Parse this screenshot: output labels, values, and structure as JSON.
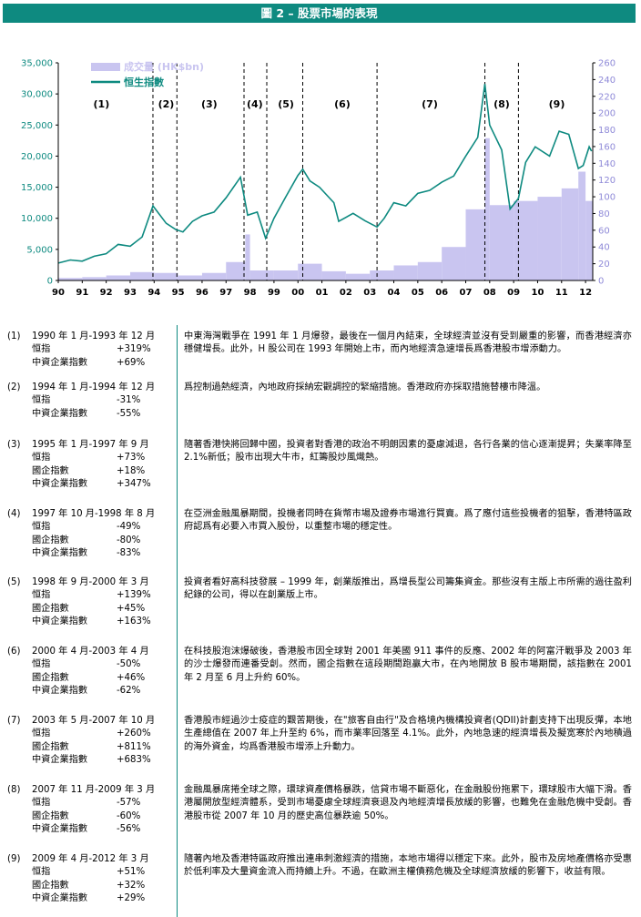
{
  "header": {
    "title": "圖 2 – 股票市場的表現"
  },
  "chart_data": {
    "type": "line+bar",
    "x_tick_labels": [
      "90",
      "91",
      "92",
      "93",
      "94",
      "95",
      "96",
      "97",
      "98",
      "99",
      "00",
      "01",
      "02",
      "03",
      "04",
      "05",
      "06",
      "07",
      "08",
      "09",
      "10",
      "11",
      "12"
    ],
    "x_range": [
      1990,
      2012.3
    ],
    "y_left": {
      "ylim": [
        0,
        35000
      ],
      "ticks": [
        "0",
        "5,000",
        "10,000",
        "15,000",
        "20,000",
        "25,000",
        "30,000",
        "35,000"
      ]
    },
    "y_right": {
      "ylim": [
        0,
        260
      ],
      "ticks": [
        "0",
        "20",
        "40",
        "60",
        "80",
        "100",
        "120",
        "140",
        "160",
        "180",
        "200",
        "220",
        "240",
        "260"
      ]
    },
    "series": [
      {
        "name": "成交量 (HK$bn)",
        "axis": "right",
        "kind": "bar",
        "color": "#c9c5f0",
        "points": [
          [
            1990,
            3
          ],
          [
            1991,
            4
          ],
          [
            1992,
            6
          ],
          [
            1993,
            10
          ],
          [
            1994,
            9
          ],
          [
            1995,
            6
          ],
          [
            1996,
            9
          ],
          [
            1997,
            22
          ],
          [
            1997.8,
            55
          ],
          [
            1998,
            12
          ],
          [
            1999,
            12
          ],
          [
            2000,
            20
          ],
          [
            2001,
            11
          ],
          [
            2002,
            8
          ],
          [
            2003,
            12
          ],
          [
            2004,
            18
          ],
          [
            2005,
            22
          ],
          [
            2006,
            40
          ],
          [
            2007,
            85
          ],
          [
            2007.8,
            170
          ],
          [
            2008,
            90
          ],
          [
            2009,
            95
          ],
          [
            2010,
            100
          ],
          [
            2011,
            110
          ],
          [
            2011.7,
            130
          ],
          [
            2012,
            95
          ]
        ]
      },
      {
        "name": "恒生指數",
        "axis": "left",
        "kind": "line",
        "color": "#0e8a80",
        "points": [
          [
            1990,
            2800
          ],
          [
            1990.5,
            3300
          ],
          [
            1991,
            3100
          ],
          [
            1991.5,
            3900
          ],
          [
            1992,
            4300
          ],
          [
            1992.5,
            5800
          ],
          [
            1993,
            5500
          ],
          [
            1993.5,
            7000
          ],
          [
            1993.95,
            12000
          ],
          [
            1994.5,
            9200
          ],
          [
            1994.9,
            8200
          ],
          [
            1995.2,
            7800
          ],
          [
            1995.6,
            9500
          ],
          [
            1996,
            10400
          ],
          [
            1996.5,
            11000
          ],
          [
            1997,
            13300
          ],
          [
            1997.6,
            16600
          ],
          [
            1997.9,
            10500
          ],
          [
            1998.3,
            11000
          ],
          [
            1998.65,
            6800
          ],
          [
            1999,
            10000
          ],
          [
            1999.5,
            13500
          ],
          [
            2000,
            16900
          ],
          [
            2000.2,
            17900
          ],
          [
            2000.5,
            16000
          ],
          [
            2000.9,
            15000
          ],
          [
            2001.5,
            12500
          ],
          [
            2001.7,
            9500
          ],
          [
            2002.3,
            10800
          ],
          [
            2002.8,
            9600
          ],
          [
            2003.3,
            8600
          ],
          [
            2003.6,
            10000
          ],
          [
            2004,
            12500
          ],
          [
            2004.5,
            12000
          ],
          [
            2005,
            14000
          ],
          [
            2005.5,
            14500
          ],
          [
            2006,
            15800
          ],
          [
            2006.5,
            16800
          ],
          [
            2007,
            20000
          ],
          [
            2007.5,
            23000
          ],
          [
            2007.8,
            31600
          ],
          [
            2008,
            25000
          ],
          [
            2008.5,
            21000
          ],
          [
            2008.85,
            11500
          ],
          [
            2009.2,
            13200
          ],
          [
            2009.5,
            19000
          ],
          [
            2009.9,
            21500
          ],
          [
            2010.5,
            20000
          ],
          [
            2010.9,
            24000
          ],
          [
            2011.3,
            23500
          ],
          [
            2011.7,
            18000
          ],
          [
            2011.9,
            18500
          ],
          [
            2012.15,
            21500
          ],
          [
            2012.25,
            20800
          ]
        ]
      }
    ],
    "period_dividers": [
      1993.95,
      1994.95,
      1997.75,
      1998.7,
      2000.2,
      2003.3,
      2007.8,
      2009.2
    ],
    "period_labels": [
      {
        "label": "(1)",
        "x": 1991.8
      },
      {
        "label": "(2)",
        "x": 1994.5
      },
      {
        "label": "(3)",
        "x": 1996.3
      },
      {
        "label": "(4)",
        "x": 1998.2
      },
      {
        "label": "(5)",
        "x": 1999.5
      },
      {
        "label": "(6)",
        "x": 2001.85
      },
      {
        "label": "(7)",
        "x": 2005.5
      },
      {
        "label": "(8)",
        "x": 2008.5
      },
      {
        "label": "(9)",
        "x": 2010.8
      }
    ],
    "legend": "top-left"
  },
  "periods": [
    {
      "num": "(1)",
      "range": "1990 年 1 月-1993 年 12 月",
      "rows": [
        [
          "恒指",
          "+319%"
        ],
        [
          "中資企業指數",
          "+69%"
        ]
      ],
      "desc": "中東海灣戰爭在 1991 年 1 月爆發，最後在一個月內結束，全球經濟並沒有受到嚴重的影響，而香港經濟亦穩健增長。此外，H 股公司在 1993 年開始上市，而內地經濟急速增長爲香港股市增添動力。"
    },
    {
      "num": "(2)",
      "range": "1994 年 1 月-1994 年 12 月",
      "rows": [
        [
          "恒指",
          "-31%"
        ],
        [
          "中資企業指數",
          "-55%"
        ]
      ],
      "desc": "爲控制過熱經濟，內地政府採納宏觀調控的緊縮措施。香港政府亦採取措施替樓市降溫。"
    },
    {
      "num": "(3)",
      "range": "1995 年 1 月-1997 年 9 月",
      "rows": [
        [
          "恒指",
          "+73%"
        ],
        [
          "國企指數",
          "+18%"
        ],
        [
          "中資企業指數",
          "+347%"
        ]
      ],
      "desc": "隨著香港快將回歸中國，投資者對香港的政治不明朗因素的憂慮減退，各行各業的信心逐漸提昇；失業率降至 2.1%新低；股市出現大牛市，紅籌股炒風熾熱。"
    },
    {
      "num": "(4)",
      "range": "1997 年 10 月-1998 年 8 月",
      "rows": [
        [
          "恒指",
          "-49%"
        ],
        [
          "國企指數",
          "-80%"
        ],
        [
          "中資企業指數",
          "-83%"
        ]
      ],
      "desc": "在亞洲金融風暴期間，投機者同時在貨幣市場及證券市場進行買賣。爲了應付這些投機者的狙擊，香港特區政府認爲有必要入市買入股份，以重整市場的穩定性。"
    },
    {
      "num": "(5)",
      "range": "1998 年 9 月-2000 年 3 月",
      "rows": [
        [
          "恒指",
          "+139%"
        ],
        [
          "國企指數",
          "+45%"
        ],
        [
          "中資企業指數",
          "+163%"
        ]
      ],
      "desc": "投資者看好高科技發展 – 1999 年，創業版推出，爲增長型公司籌集資金。那些沒有主版上市所需的過往盈利紀錄的公司，得以在創業版上市。"
    },
    {
      "num": "(6)",
      "range": "2000 年 4 月-2003 年 4 月",
      "rows": [
        [
          "恒指",
          "-50%"
        ],
        [
          "國企指數",
          "+46%"
        ],
        [
          "中資企業指數",
          "-62%"
        ]
      ],
      "desc": "在科技股泡沫爆破後，香港股市因全球對 2001 年美國 911 事件的反應、2002 年的阿富汗戰爭及 2003 年的沙士爆發而連番受創。然而，國企指數在這段期間跑贏大市，在內地開放 B 股市場期間，該指數在 2001 年 2 月至 6 月上升約 60%。"
    },
    {
      "num": "(7)",
      "range": "2003 年 5 月-2007 年 10 月",
      "rows": [
        [
          "恒指",
          "+260%"
        ],
        [
          "國企指數",
          "+811%"
        ],
        [
          "中資企業指數",
          "+683%"
        ]
      ],
      "desc": "香港股市經過沙士疫症的艱苦期後，在\"旅客自由行\"及合格境內機構投資者(QDII)計劃支持下出現反彈，本地生產總值在 2007 年上升至約 6%，而市業率回落至 4.1%。此外，內地急速的經濟增長及擬宽寒於內地積過的海外資金，均爲香港股市增添上升動力。"
    },
    {
      "num": "(8)",
      "range": "2007 年 11 月-2009 年 3 月",
      "rows": [
        [
          "恒指",
          "-57%"
        ],
        [
          "國企指數",
          "-60%"
        ],
        [
          "中資企業指數",
          "-56%"
        ]
      ],
      "desc": "金融風暴席捲全球之際，環球資產價格暴跌，信貸市場不斷惡化，在金融股份拖累下，環球股市大幅下滑。香港屬開放型經濟體系，受到市場憂慮全球經濟衰退及內地經濟增長放緩的影響，也難免在金融危機中受創。香港股市從 2007 年 10 月的歷史高位暴跌逾 50%。"
    },
    {
      "num": "(9)",
      "range": "2009 年 4 月-2012 年 3 月",
      "rows": [
        [
          "恒指",
          "+51%"
        ],
        [
          "國企指數",
          "+32%"
        ],
        [
          "中資企業指數",
          "+29%"
        ]
      ],
      "desc": "隨著內地及香港特區政府推出連串刺激經濟的措施，本地市場得以穩定下來。此外，股市及房地產價格亦受惠於低利率及大量資金流入而持續上升。不過，在歐洲主權債務危機及全球經濟放緩的影響下，收益有限。"
    }
  ]
}
